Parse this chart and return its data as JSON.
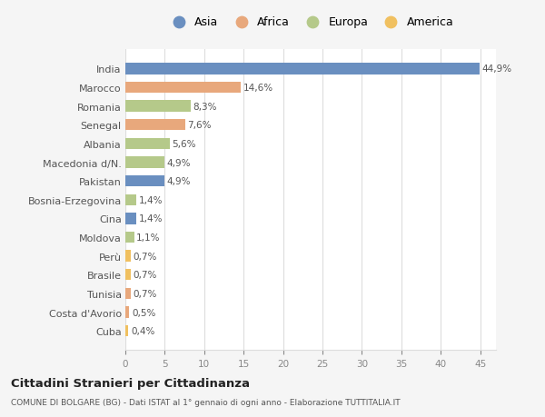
{
  "categories": [
    "India",
    "Marocco",
    "Romania",
    "Senegal",
    "Albania",
    "Macedonia d/N.",
    "Pakistan",
    "Bosnia-Erzegovina",
    "Cina",
    "Moldova",
    "Perù",
    "Brasile",
    "Tunisia",
    "Costa d'Avorio",
    "Cuba"
  ],
  "values": [
    44.9,
    14.6,
    8.3,
    7.6,
    5.6,
    4.9,
    4.9,
    1.4,
    1.4,
    1.1,
    0.7,
    0.7,
    0.7,
    0.5,
    0.4
  ],
  "labels": [
    "44,9%",
    "14,6%",
    "8,3%",
    "7,6%",
    "5,6%",
    "4,9%",
    "4,9%",
    "1,4%",
    "1,4%",
    "1,1%",
    "0,7%",
    "0,7%",
    "0,7%",
    "0,5%",
    "0,4%"
  ],
  "colors": [
    "#6a8fc0",
    "#e8a87c",
    "#b5c98a",
    "#e8a87c",
    "#b5c98a",
    "#b5c98a",
    "#6a8fc0",
    "#b5c98a",
    "#6a8fc0",
    "#b5c98a",
    "#f0c060",
    "#f0c060",
    "#e8a87c",
    "#e8a87c",
    "#f0c060"
  ],
  "legend_labels": [
    "Asia",
    "Africa",
    "Europa",
    "America"
  ],
  "legend_colors": [
    "#6a8fc0",
    "#e8a87c",
    "#b5c98a",
    "#f0c060"
  ],
  "title": "Cittadini Stranieri per Cittadinanza",
  "subtitle": "COMUNE DI BOLGARE (BG) - Dati ISTAT al 1° gennaio di ogni anno - Elaborazione TUTTITALIA.IT",
  "background_color": "#f5f5f5",
  "plot_background": "#ffffff",
  "xlim": [
    0,
    47
  ],
  "xticks": [
    0,
    5,
    10,
    15,
    20,
    25,
    30,
    35,
    40,
    45
  ]
}
